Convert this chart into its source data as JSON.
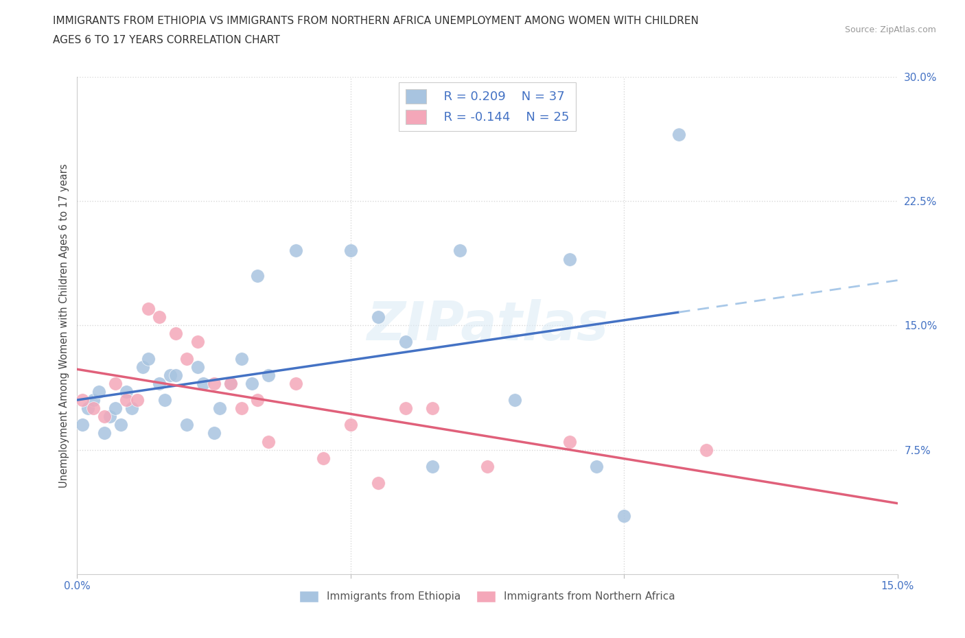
{
  "title_line1": "IMMIGRANTS FROM ETHIOPIA VS IMMIGRANTS FROM NORTHERN AFRICA UNEMPLOYMENT AMONG WOMEN WITH CHILDREN",
  "title_line2": "AGES 6 TO 17 YEARS CORRELATION CHART",
  "source": "Source: ZipAtlas.com",
  "xlabel": "",
  "ylabel": "Unemployment Among Women with Children Ages 6 to 17 years",
  "xlim": [
    0,
    0.15
  ],
  "ylim": [
    0,
    0.3
  ],
  "ytick_labels_right": [
    "7.5%",
    "15.0%",
    "22.5%",
    "30.0%"
  ],
  "ytick_values_right": [
    0.075,
    0.15,
    0.225,
    0.3
  ],
  "R_ethiopia": 0.209,
  "N_ethiopia": 37,
  "R_north_africa": -0.144,
  "N_north_africa": 25,
  "color_ethiopia": "#a8c4e0",
  "color_north_africa": "#f4a7b9",
  "line_color_ethiopia": "#4472c4",
  "line_color_north_africa": "#e0607a",
  "line_dashed_color": "#a8c8e8",
  "ethiopia_x": [
    0.001,
    0.002,
    0.003,
    0.004,
    0.005,
    0.006,
    0.007,
    0.008,
    0.009,
    0.01,
    0.012,
    0.013,
    0.015,
    0.016,
    0.017,
    0.018,
    0.02,
    0.022,
    0.023,
    0.025,
    0.026,
    0.028,
    0.03,
    0.032,
    0.033,
    0.035,
    0.04,
    0.05,
    0.055,
    0.06,
    0.065,
    0.07,
    0.08,
    0.09,
    0.095,
    0.1,
    0.11
  ],
  "ethiopia_y": [
    0.09,
    0.1,
    0.105,
    0.11,
    0.085,
    0.095,
    0.1,
    0.09,
    0.11,
    0.1,
    0.125,
    0.13,
    0.115,
    0.105,
    0.12,
    0.12,
    0.09,
    0.125,
    0.115,
    0.085,
    0.1,
    0.115,
    0.13,
    0.115,
    0.18,
    0.12,
    0.195,
    0.195,
    0.155,
    0.14,
    0.065,
    0.195,
    0.105,
    0.19,
    0.065,
    0.035,
    0.265
  ],
  "north_africa_x": [
    0.001,
    0.003,
    0.005,
    0.007,
    0.009,
    0.011,
    0.013,
    0.015,
    0.018,
    0.02,
    0.022,
    0.025,
    0.028,
    0.03,
    0.033,
    0.035,
    0.04,
    0.045,
    0.05,
    0.055,
    0.06,
    0.065,
    0.075,
    0.09,
    0.115
  ],
  "north_africa_y": [
    0.105,
    0.1,
    0.095,
    0.115,
    0.105,
    0.105,
    0.16,
    0.155,
    0.145,
    0.13,
    0.14,
    0.115,
    0.115,
    0.1,
    0.105,
    0.08,
    0.115,
    0.07,
    0.09,
    0.055,
    0.1,
    0.1,
    0.065,
    0.08,
    0.075
  ],
  "watermark": "ZIPatlas",
  "background_color": "#ffffff",
  "grid_color": "#d8d8d8",
  "eth_line_x_solid_end": 0.11,
  "eth_line_x_dash_end": 0.15,
  "na_line_x_start": 0.0,
  "na_line_x_end": 0.15
}
